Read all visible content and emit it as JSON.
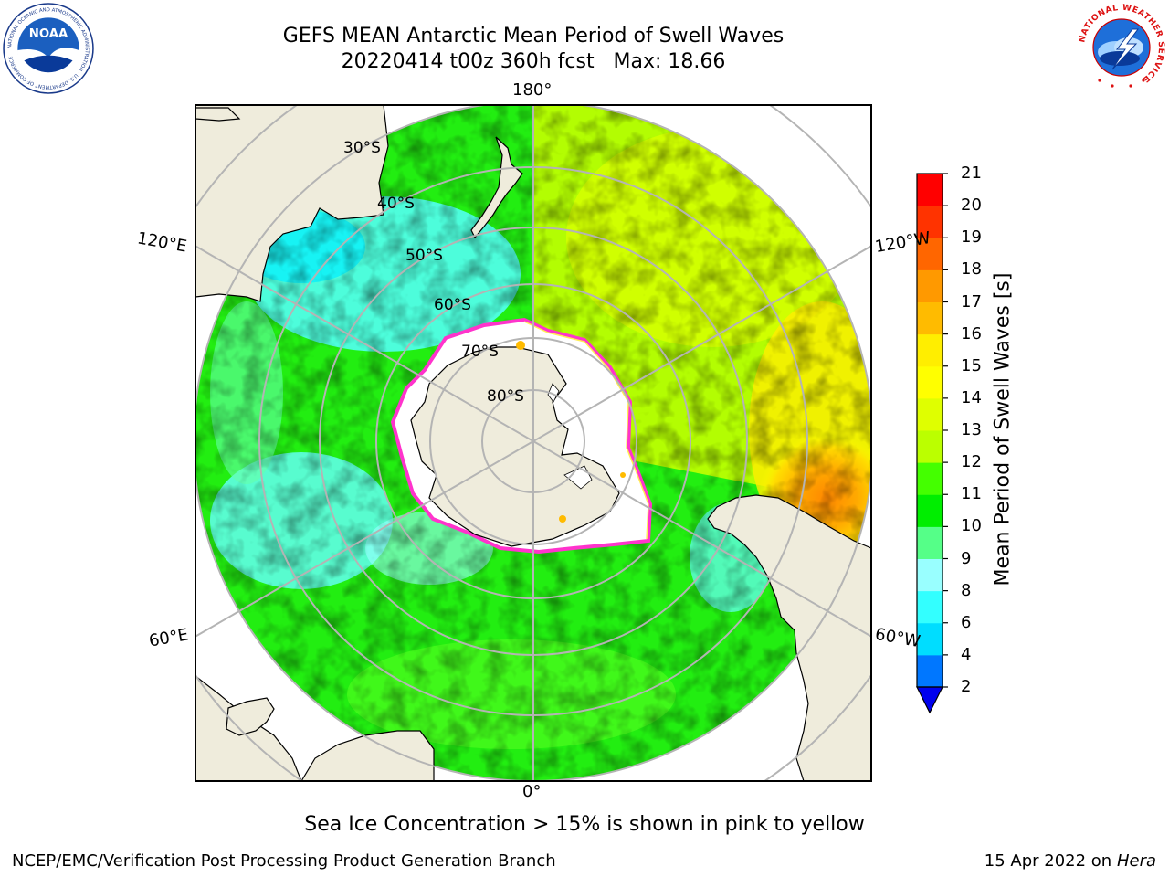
{
  "header": {
    "title_line1": "GEFS MEAN Antarctic Mean Period of Swell Waves",
    "title_line2": "20220414 t00z 360h fcst   Max: 18.66"
  },
  "logos": {
    "left": "NOAA",
    "left_ring_text": "NATIONAL OCEANIC AND ATMOSPHERIC ADMINISTRATION · U.S. DEPARTMENT OF COMMERCE",
    "right_ring_text": "NATIONAL WEATHER SERVICE"
  },
  "map": {
    "projection": "south-polar-stereographic",
    "longitude_labels": {
      "top": "180°",
      "bottom": "0°",
      "left_upper": "120°E",
      "left_lower": "60°E",
      "right_upper": "120°W",
      "right_lower": "60°W"
    },
    "latitude_labels": [
      "30°S",
      "40°S",
      "50°S",
      "60°S",
      "70°S",
      "80°S"
    ],
    "colors": {
      "land": "#efecdc",
      "ice": "#ffffff",
      "grid": "#b4b4b4",
      "ice_edge": "#ff33cc"
    }
  },
  "colorbar": {
    "label": "Mean Period of Swell Waves [s]",
    "ticks": [
      "21",
      "20",
      "19",
      "18",
      "17",
      "16",
      "15",
      "14",
      "13",
      "12",
      "11",
      "10",
      "9",
      "8",
      "6",
      "4",
      "2"
    ],
    "colors_bottom_to_top": [
      "#0077ff",
      "#00ddff",
      "#33ffff",
      "#99ffff",
      "#55ff88",
      "#00ee00",
      "#44ff00",
      "#bbff00",
      "#dfff00",
      "#ffff00",
      "#ffee00",
      "#ffbb00",
      "#ff9900",
      "#ff6600",
      "#ff3300",
      "#ff0000"
    ],
    "extend_min_color": "#0000ee"
  },
  "footer": {
    "note": "Sea Ice Concentration > 15% is shown in pink to yellow",
    "credit": "NCEP/EMC/Verification Post Processing Product Generation Branch",
    "date": "15 Apr 2022 on ",
    "host": "Hera"
  }
}
